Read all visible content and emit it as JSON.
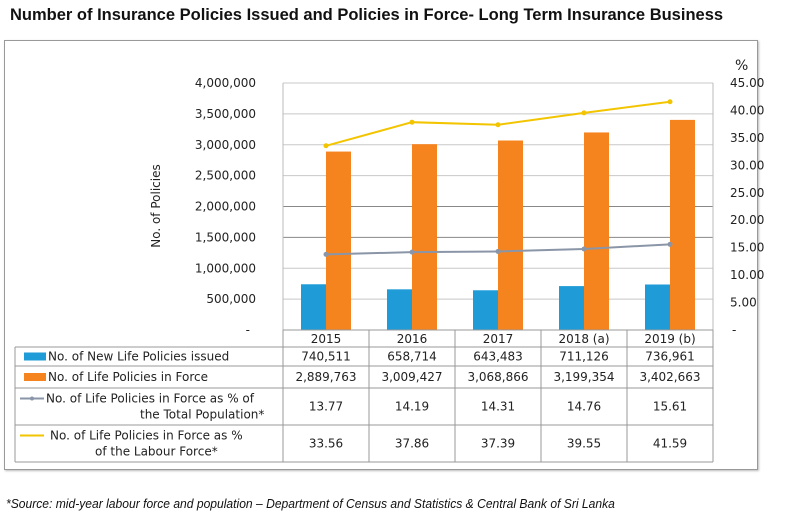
{
  "title": "Number of Insurance Policies Issued and Policies in Force- Long Term Insurance Business",
  "source": "*Source: mid-year labour force and population – Department of Census and Statistics & Central Bank of Sri Lanka",
  "chart_data": {
    "type": "bar",
    "categories": [
      "2015",
      "2016",
      "2017",
      "2018 (a)",
      "2019 (b)"
    ],
    "ylabel": "No. of Policies",
    "ylim": [
      0,
      4000000
    ],
    "yticks": [
      "-",
      "500,000",
      "1,000,000",
      "1,500,000",
      "2,000,000",
      "2,500,000",
      "3,000,000",
      "3,500,000",
      "4,000,000"
    ],
    "y2label": "%",
    "y2lim": [
      0,
      45
    ],
    "y2ticks": [
      "-",
      "5.00",
      "10.00",
      "15.00",
      "20.00",
      "25.00",
      "30.00",
      "35.00",
      "40.00",
      "45.00"
    ],
    "grid": true,
    "legend": "data-table",
    "series": [
      {
        "name": "No. of New Life Policies issued",
        "type": "bar",
        "axis": "left",
        "color": "#1f9bd7",
        "values": [
          740511,
          658714,
          643483,
          711126,
          736961
        ],
        "labels": [
          "740,511",
          "658,714",
          "643,483",
          "711,126",
          "736,961"
        ]
      },
      {
        "name": "No. of Life Policies in Force",
        "type": "bar",
        "axis": "left",
        "color": "#f5841f",
        "values": [
          2889763,
          3009427,
          3068866,
          3199354,
          3402663
        ],
        "labels": [
          "2,889,763",
          "3,009,427",
          "3,068,866",
          "3,199,354",
          "3,402,663"
        ]
      },
      {
        "name": "No. of Life Policies in Force as % of the Total Population*",
        "name_lines": [
          "No. of Life Policies in Force as % of",
          "the Total Population*"
        ],
        "type": "line",
        "axis": "right",
        "color": "#8a96a8",
        "values": [
          13.77,
          14.19,
          14.31,
          14.76,
          15.61
        ],
        "labels": [
          "13.77",
          "14.19",
          "14.31",
          "14.76",
          "15.61"
        ]
      },
      {
        "name": "No. of Life Policies in Force as % of the Labour Force*",
        "name_lines": [
          "No. of Life Policies in Force as %",
          "of the Labour Force*"
        ],
        "type": "line",
        "axis": "right",
        "color": "#f2c500",
        "values": [
          33.56,
          37.86,
          37.39,
          39.55,
          41.59
        ],
        "labels": [
          "33.56",
          "37.86",
          "37.39",
          "39.55",
          "41.59"
        ]
      }
    ]
  }
}
